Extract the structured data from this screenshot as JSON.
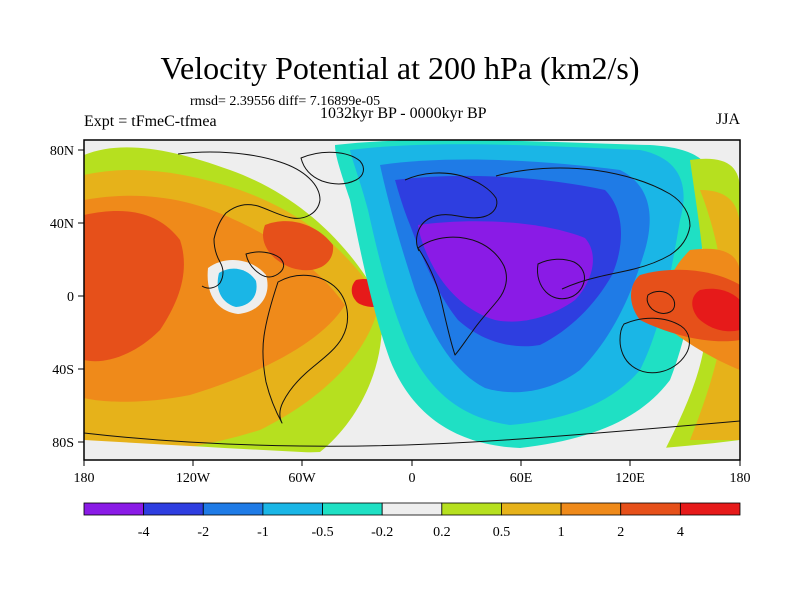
{
  "title": "Velocity Potential at 200 hPa (km2/s)",
  "stats": "rmsd= 2.39556 diff= 7.16899e-05",
  "experiment": "Expt = tFmeC-tfmea",
  "period": "1032kyr BP - 0000kyr BP",
  "season": "JJA",
  "lat_labels": [
    "80N",
    "40N",
    "0",
    "40S",
    "80S"
  ],
  "lon_labels": [
    "180",
    "120W",
    "60W",
    "0",
    "60E",
    "120E",
    "180"
  ],
  "colorbar": {
    "colors": [
      "#8a1be6",
      "#2e3ee0",
      "#1f7be6",
      "#1ab6e6",
      "#1fe0c4",
      "#eeeeee",
      "#b6e01f",
      "#e6b21a",
      "#ef8a1a",
      "#e6501a",
      "#e61a1a"
    ],
    "labels": [
      "-4",
      "-2",
      "-1",
      "-0.5",
      "-0.2",
      "0.2",
      "0.5",
      "1",
      "2",
      "4"
    ]
  }
}
